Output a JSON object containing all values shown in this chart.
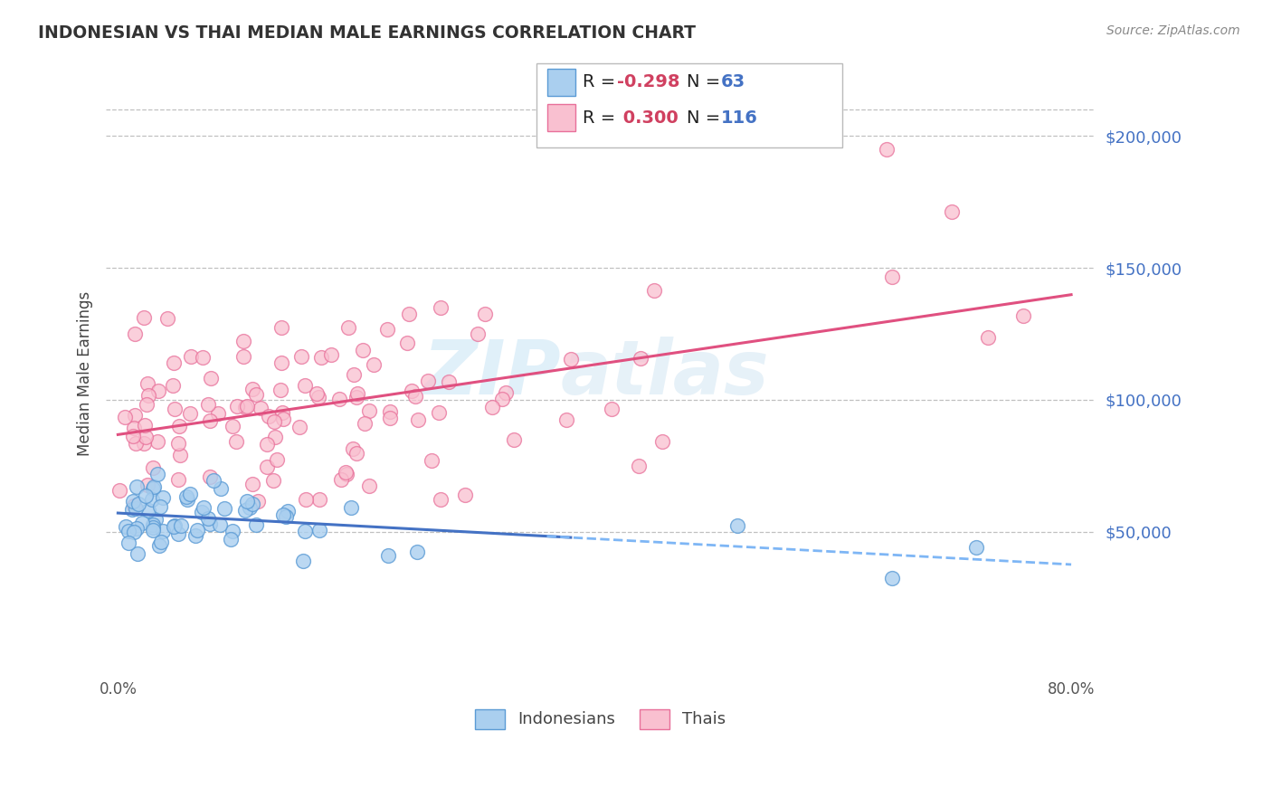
{
  "title": "INDONESIAN VS THAI MEDIAN MALE EARNINGS CORRELATION CHART",
  "source": "Source: ZipAtlas.com",
  "ylabel": "Median Male Earnings",
  "color_indonesian_face": "#aacfef",
  "color_indonesian_edge": "#5b9bd5",
  "color_thai_face": "#f9c0d0",
  "color_thai_edge": "#e8709a",
  "color_line_indonesian": "#4472c4",
  "color_line_thai": "#e05080",
  "color_line_indo_dashed": "#7eb6f5",
  "color_ytick": "#4472c4",
  "color_title": "#333333",
  "color_grid": "#c0c0c0",
  "background": "#ffffff",
  "ylim": [
    -5000,
    225000
  ],
  "xlim": [
    -0.01,
    0.82
  ],
  "R_indo": -0.298,
  "N_indo": 63,
  "R_thai": 0.3,
  "N_thai": 116,
  "watermark_zip_color": "#c8e4f5",
  "watermark_atlas_color": "#c8e0f0",
  "legend_box_color": "#4472c4",
  "legend_N_color": "#4472c4",
  "legend_R_neg_color": "#d04060",
  "legend_R_pos_color": "#d04060"
}
